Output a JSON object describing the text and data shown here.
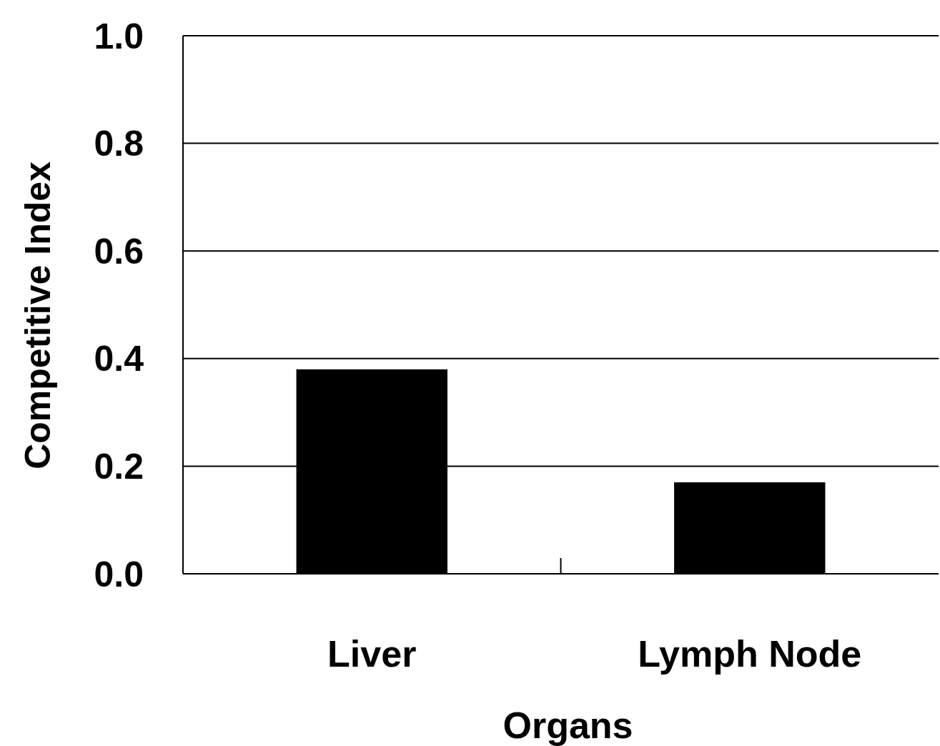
{
  "chart_data": {
    "type": "bar",
    "xlabel": "Organs",
    "ylabel": "Competitive Index",
    "categories": [
      "Liver",
      "Lymph Node"
    ],
    "values": [
      0.38,
      0.17
    ],
    "color": "#000000",
    "ylim": [
      0,
      1
    ],
    "yticks": [
      {
        "value": 0,
        "label": "0.0"
      },
      {
        "value": 0.2,
        "label": "0.2"
      },
      {
        "value": 0.4,
        "label": "0.4"
      },
      {
        "value": 0.6,
        "label": "0.6"
      },
      {
        "value": 0.8,
        "label": "0.8"
      },
      {
        "value": 1,
        "label": "1.0"
      }
    ],
    "grid": "y"
  }
}
